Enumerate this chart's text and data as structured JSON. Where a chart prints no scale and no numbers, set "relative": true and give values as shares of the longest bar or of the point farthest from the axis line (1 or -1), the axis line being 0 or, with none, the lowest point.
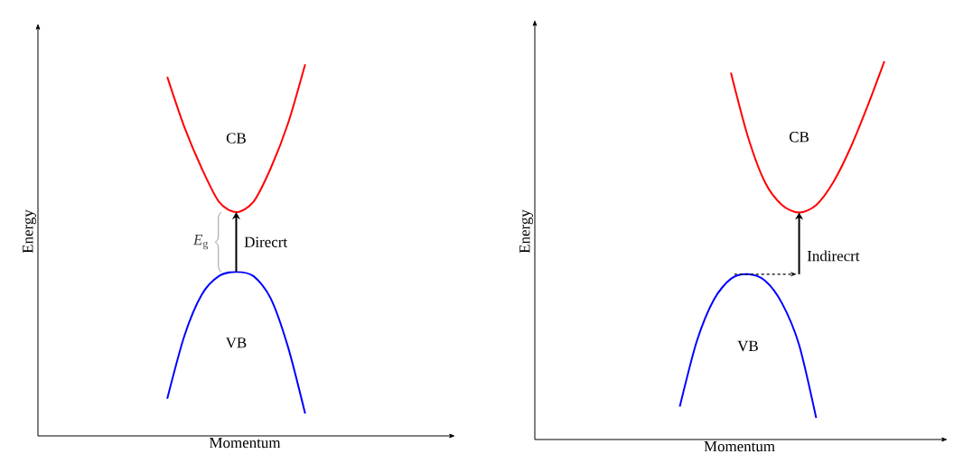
{
  "chart_data": [
    {
      "type": "line",
      "relative": true,
      "xlabel": "Momentum",
      "ylabel": "Energy",
      "categories": [
        null,
        null,
        null,
        null,
        null,
        null,
        null,
        null,
        null,
        null,
        null,
        null,
        null,
        null,
        null,
        null,
        null,
        null,
        null,
        null,
        null,
        null,
        null,
        null
      ],
      "series": [
        {
          "name": "CB",
          "color": "#ff0000",
          "values": [
            null,
            null,
            null,
            null,
            null,
            null,
            null,
            0.966,
            0.83,
            0.72,
            0.63,
            0.602,
            0.63,
            0.72,
            0.84,
            1.0,
            null,
            null,
            null,
            null,
            null,
            null,
            null,
            null
          ]
        },
        {
          "name": "VB",
          "color": "#0000ff",
          "values": [
            null,
            null,
            null,
            null,
            null,
            null,
            null,
            0.1,
            0.27,
            0.38,
            0.43,
            0.441,
            0.43,
            0.37,
            0.24,
            0.06,
            null,
            null,
            null,
            null,
            null,
            null,
            null,
            null
          ]
        }
      ],
      "annotations": [
        "*E*$_{g}$",
        "Direcrt"
      ]
    },
    {
      "type": "line",
      "relative": true,
      "xlabel": "Momentum",
      "ylabel": "Energy",
      "categories": [
        null,
        null,
        null,
        null,
        null,
        null,
        null,
        null,
        null,
        null,
        null,
        null,
        null,
        null,
        null,
        null,
        null,
        null,
        null,
        null,
        null,
        null,
        null,
        null
      ],
      "series": [
        {
          "name": "CB",
          "color": "#ff0000",
          "values": [
            null,
            null,
            null,
            null,
            null,
            null,
            null,
            null,
            null,
            null,
            null,
            0.97,
            0.8,
            0.68,
            0.62,
            0.6,
            0.62,
            0.68,
            0.77,
            0.88,
            1.0,
            null,
            null,
            null
          ]
        },
        {
          "name": "VB",
          "color": "#0000ff",
          "values": [
            null,
            null,
            null,
            null,
            null,
            null,
            null,
            null,
            0.087,
            0.26,
            0.37,
            0.425,
            0.437,
            0.42,
            0.36,
            0.25,
            0.057,
            null,
            null,
            null,
            null,
            null,
            null,
            null
          ]
        }
      ],
      "annotations": [
        "Indirecrt"
      ]
    }
  ]
}
